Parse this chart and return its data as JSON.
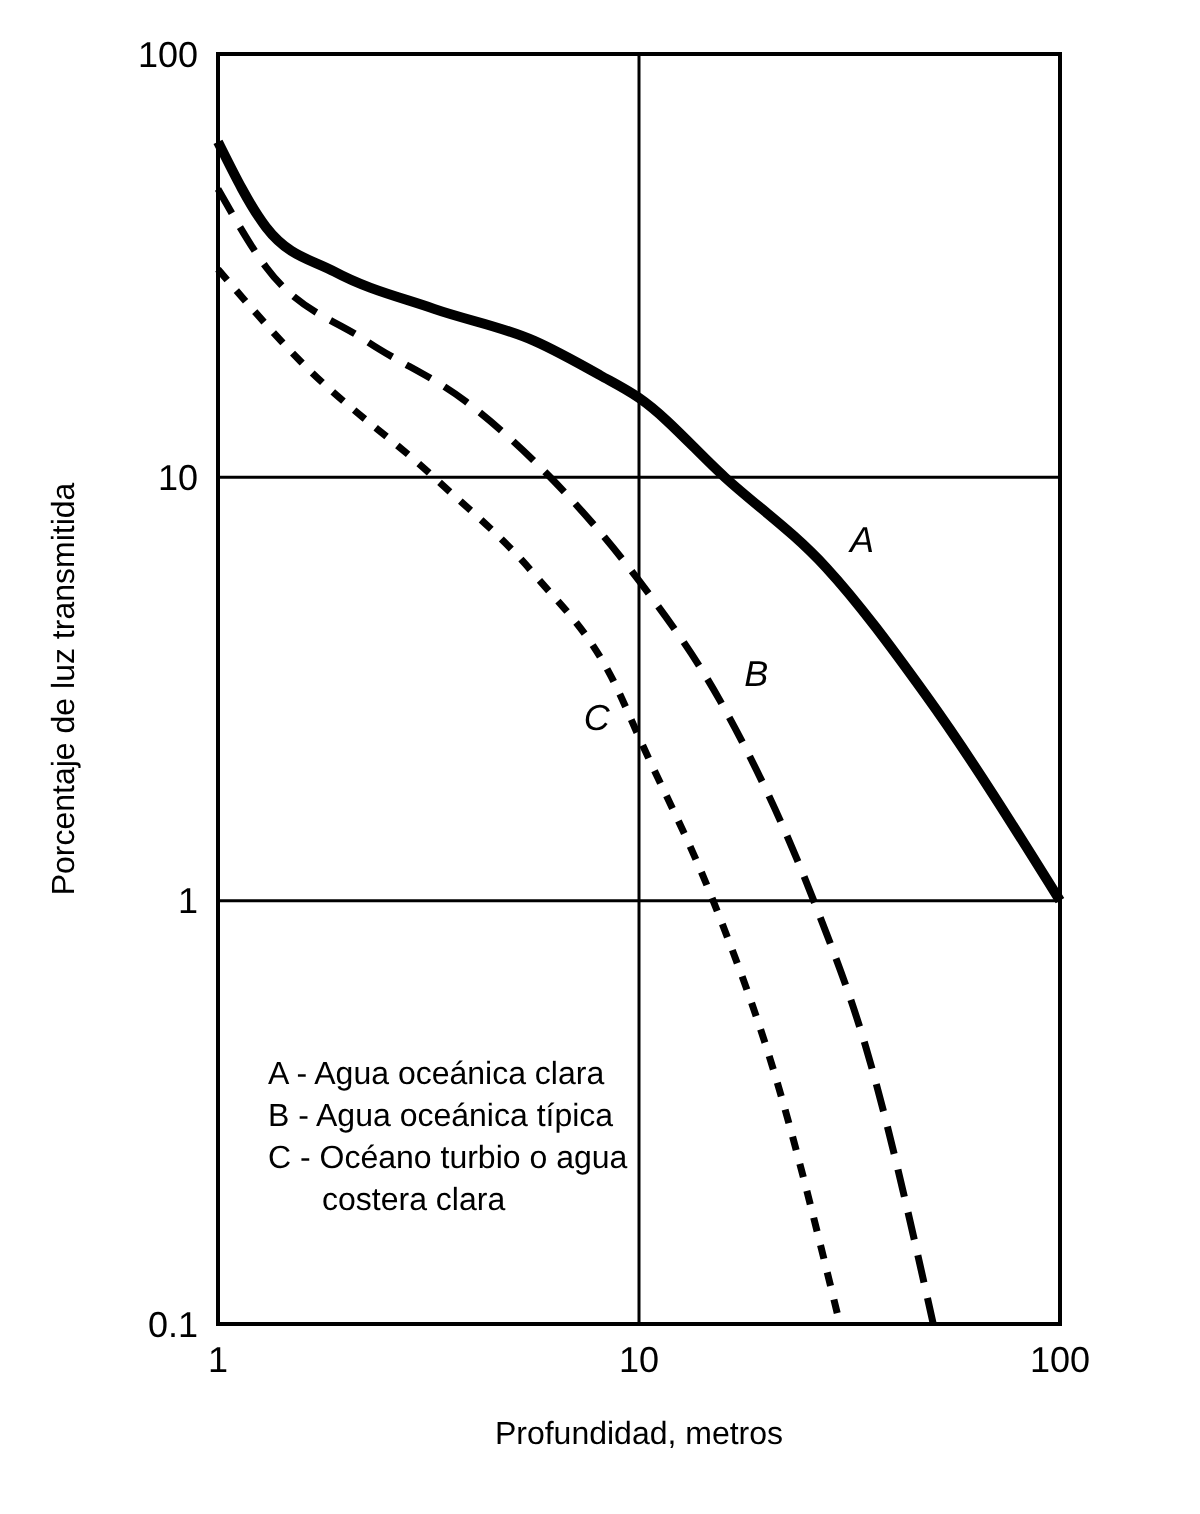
{
  "chart_data": {
    "type": "line",
    "xlabel": "Profundidad, metros",
    "ylabel": "Porcentaje de luz transmitida",
    "log": "xy",
    "xlim": [
      1,
      100
    ],
    "ylim": [
      0.1,
      100
    ],
    "xticks": [
      1,
      10,
      100
    ],
    "yticks": [
      0.1,
      1,
      10,
      100
    ],
    "grid": true,
    "series": [
      {
        "color": "#000000",
        "line_style": "solid",
        "x": [
          1,
          1.3,
          1.89,
          3.26,
          5.64,
          8.1,
          10,
          16,
          27.8,
          48,
          100
        ],
        "values": [
          62,
          39,
          30.6,
          25,
          21,
          17.4,
          15.4,
          10,
          6.13,
          3.06,
          1
        ]
      },
      {
        "color": "#000000",
        "line_style": "dashed",
        "x": [
          1,
          1.3,
          2.25,
          3.88,
          6.28,
          10,
          15.6,
          26,
          34.6,
          50
        ],
        "values": [
          48,
          31.4,
          21,
          15.1,
          9.8,
          5.7,
          2.96,
          1,
          0.45,
          0.1
        ]
      },
      {
        "color": "#000000",
        "line_style": "dotted",
        "x": [
          1,
          1.57,
          3.26,
          5.64,
          8.7,
          10.1,
          15,
          21,
          30
        ],
        "values": [
          31,
          18.8,
          10,
          5.9,
          3.3,
          2.38,
          1,
          0.39,
          0.1
        ]
      }
    ],
    "annotations": [
      {
        "text": "A",
        "x": 27.8,
        "y": 6.13
      },
      {
        "text": "B",
        "x": 15.6,
        "y": 2.96
      },
      {
        "text": "C",
        "x": 10.1,
        "y": 2.38
      },
      "A - Agua oceánica clara",
      "B - Agua oceánica típica",
      "C - Océano turbio o agua\ncostera clara"
    ]
  }
}
